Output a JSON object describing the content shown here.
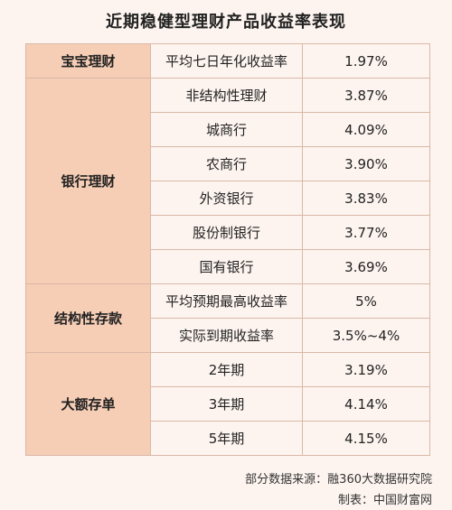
{
  "title": "近期稳健型理财产品收益率表现",
  "table": {
    "groups": [
      {
        "category": "宝宝理财",
        "rows": [
          {
            "name": "平均七日年化收益率",
            "rate": "1.97%"
          }
        ]
      },
      {
        "category": "银行理财",
        "rows": [
          {
            "name": "非结构性理财",
            "rate": "3.87%"
          },
          {
            "name": "城商行",
            "rate": "4.09%"
          },
          {
            "name": "农商行",
            "rate": "3.90%"
          },
          {
            "name": "外资银行",
            "rate": "3.83%"
          },
          {
            "name": "股份制银行",
            "rate": "3.77%"
          },
          {
            "name": "国有银行",
            "rate": "3.69%"
          }
        ]
      },
      {
        "category": "结构性存款",
        "rows": [
          {
            "name": "平均预期最高收益率",
            "rate": "5%"
          },
          {
            "name": "实际到期收益率",
            "rate": "3.5%~4%"
          }
        ]
      },
      {
        "category": "大额存单",
        "rows": [
          {
            "name": "2年期",
            "rate": "3.19%"
          },
          {
            "name": "3年期",
            "rate": "4.14%"
          },
          {
            "name": "5年期",
            "rate": "4.15%"
          }
        ]
      }
    ]
  },
  "footer": {
    "source": "部分数据来源：融360大数据研究院",
    "maker": "制表：中国财富网"
  }
}
